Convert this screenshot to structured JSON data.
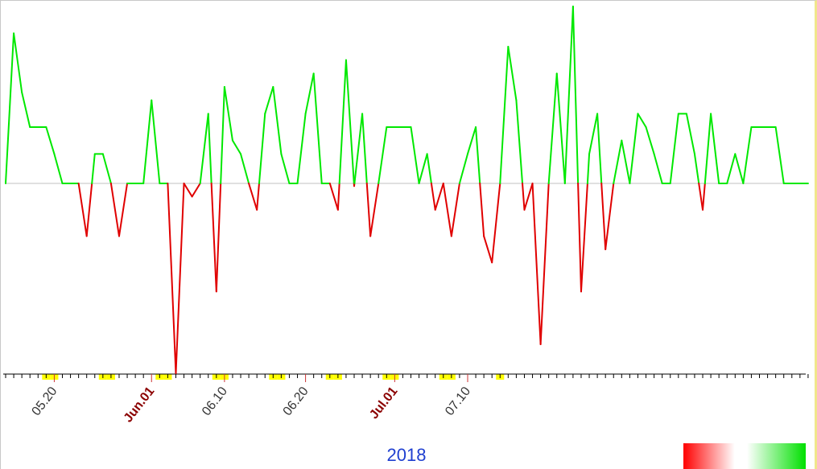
{
  "chart_data": {
    "type": "line",
    "x_axis_type": "date",
    "year": "2018",
    "start_date": "2018-05-14",
    "x_tick_labels": [
      {
        "date": "2018-05-20",
        "text": "05.20",
        "month_start": false
      },
      {
        "date": "2018-06-01",
        "text": "Jun.01",
        "month_start": true
      },
      {
        "date": "2018-06-10",
        "text": "06.10",
        "month_start": false
      },
      {
        "date": "2018-06-20",
        "text": "06.20",
        "month_start": false
      },
      {
        "date": "2018-07-01",
        "text": "Jul.01",
        "month_start": true
      },
      {
        "date": "2018-07-10",
        "text": "07.10",
        "month_start": false
      }
    ],
    "weekend_dates": [
      "2018-05-19",
      "2018-05-20",
      "2018-05-26",
      "2018-05-27",
      "2018-06-02",
      "2018-06-03",
      "2018-06-09",
      "2018-06-10",
      "2018-06-16",
      "2018-06-17",
      "2018-06-23",
      "2018-06-24",
      "2018-06-30",
      "2018-07-01",
      "2018-07-07",
      "2018-07-08",
      "2018-07-14"
    ],
    "series": [
      {
        "values": [
          0,
          5.6,
          3.4,
          2.1,
          2.1,
          2.1,
          1.1,
          0,
          0,
          0,
          -2,
          1.1,
          1.1,
          0,
          -2,
          0,
          0,
          0,
          3.1,
          0,
          0,
          -7.2,
          0,
          -0.5,
          0,
          2.6,
          -4.1,
          3.6,
          1.6,
          1.1,
          0,
          -1,
          2.6,
          3.6,
          1.1,
          0,
          0,
          2.6,
          4.1,
          0,
          0,
          -1,
          4.6,
          -0.1,
          2.6,
          -2,
          0,
          2.1,
          2.1,
          2.1,
          2.1,
          0,
          1.1,
          -1,
          0,
          -2,
          0,
          1.1,
          2.1,
          -2,
          -3,
          0,
          5.1,
          3.1,
          -1,
          0,
          -6.1,
          0,
          4.1,
          0,
          6.6,
          -4.1,
          1.1,
          2.6,
          -2.5,
          0,
          1.6,
          0,
          2.6,
          2.1,
          1.1,
          0,
          0,
          2.6,
          2.6,
          1.1,
          -1,
          2.6,
          0,
          0,
          1.1,
          0,
          2.1,
          2.1,
          2.1,
          2.1,
          0,
          0,
          0,
          0
        ]
      }
    ],
    "ylim": [
      -7.2,
      6.6
    ],
    "positive_color": "#00e800",
    "negative_color": "#e00000",
    "zero_line_color": "#c0c0c0",
    "weekend_color": "#ffff00",
    "tick_label_color": "#333333",
    "month_label_color": "#8b0000",
    "year_label_color": "#1f3fd0",
    "legend_gradient": [
      "#ff0000",
      "#ffffff",
      "#00e000"
    ]
  }
}
